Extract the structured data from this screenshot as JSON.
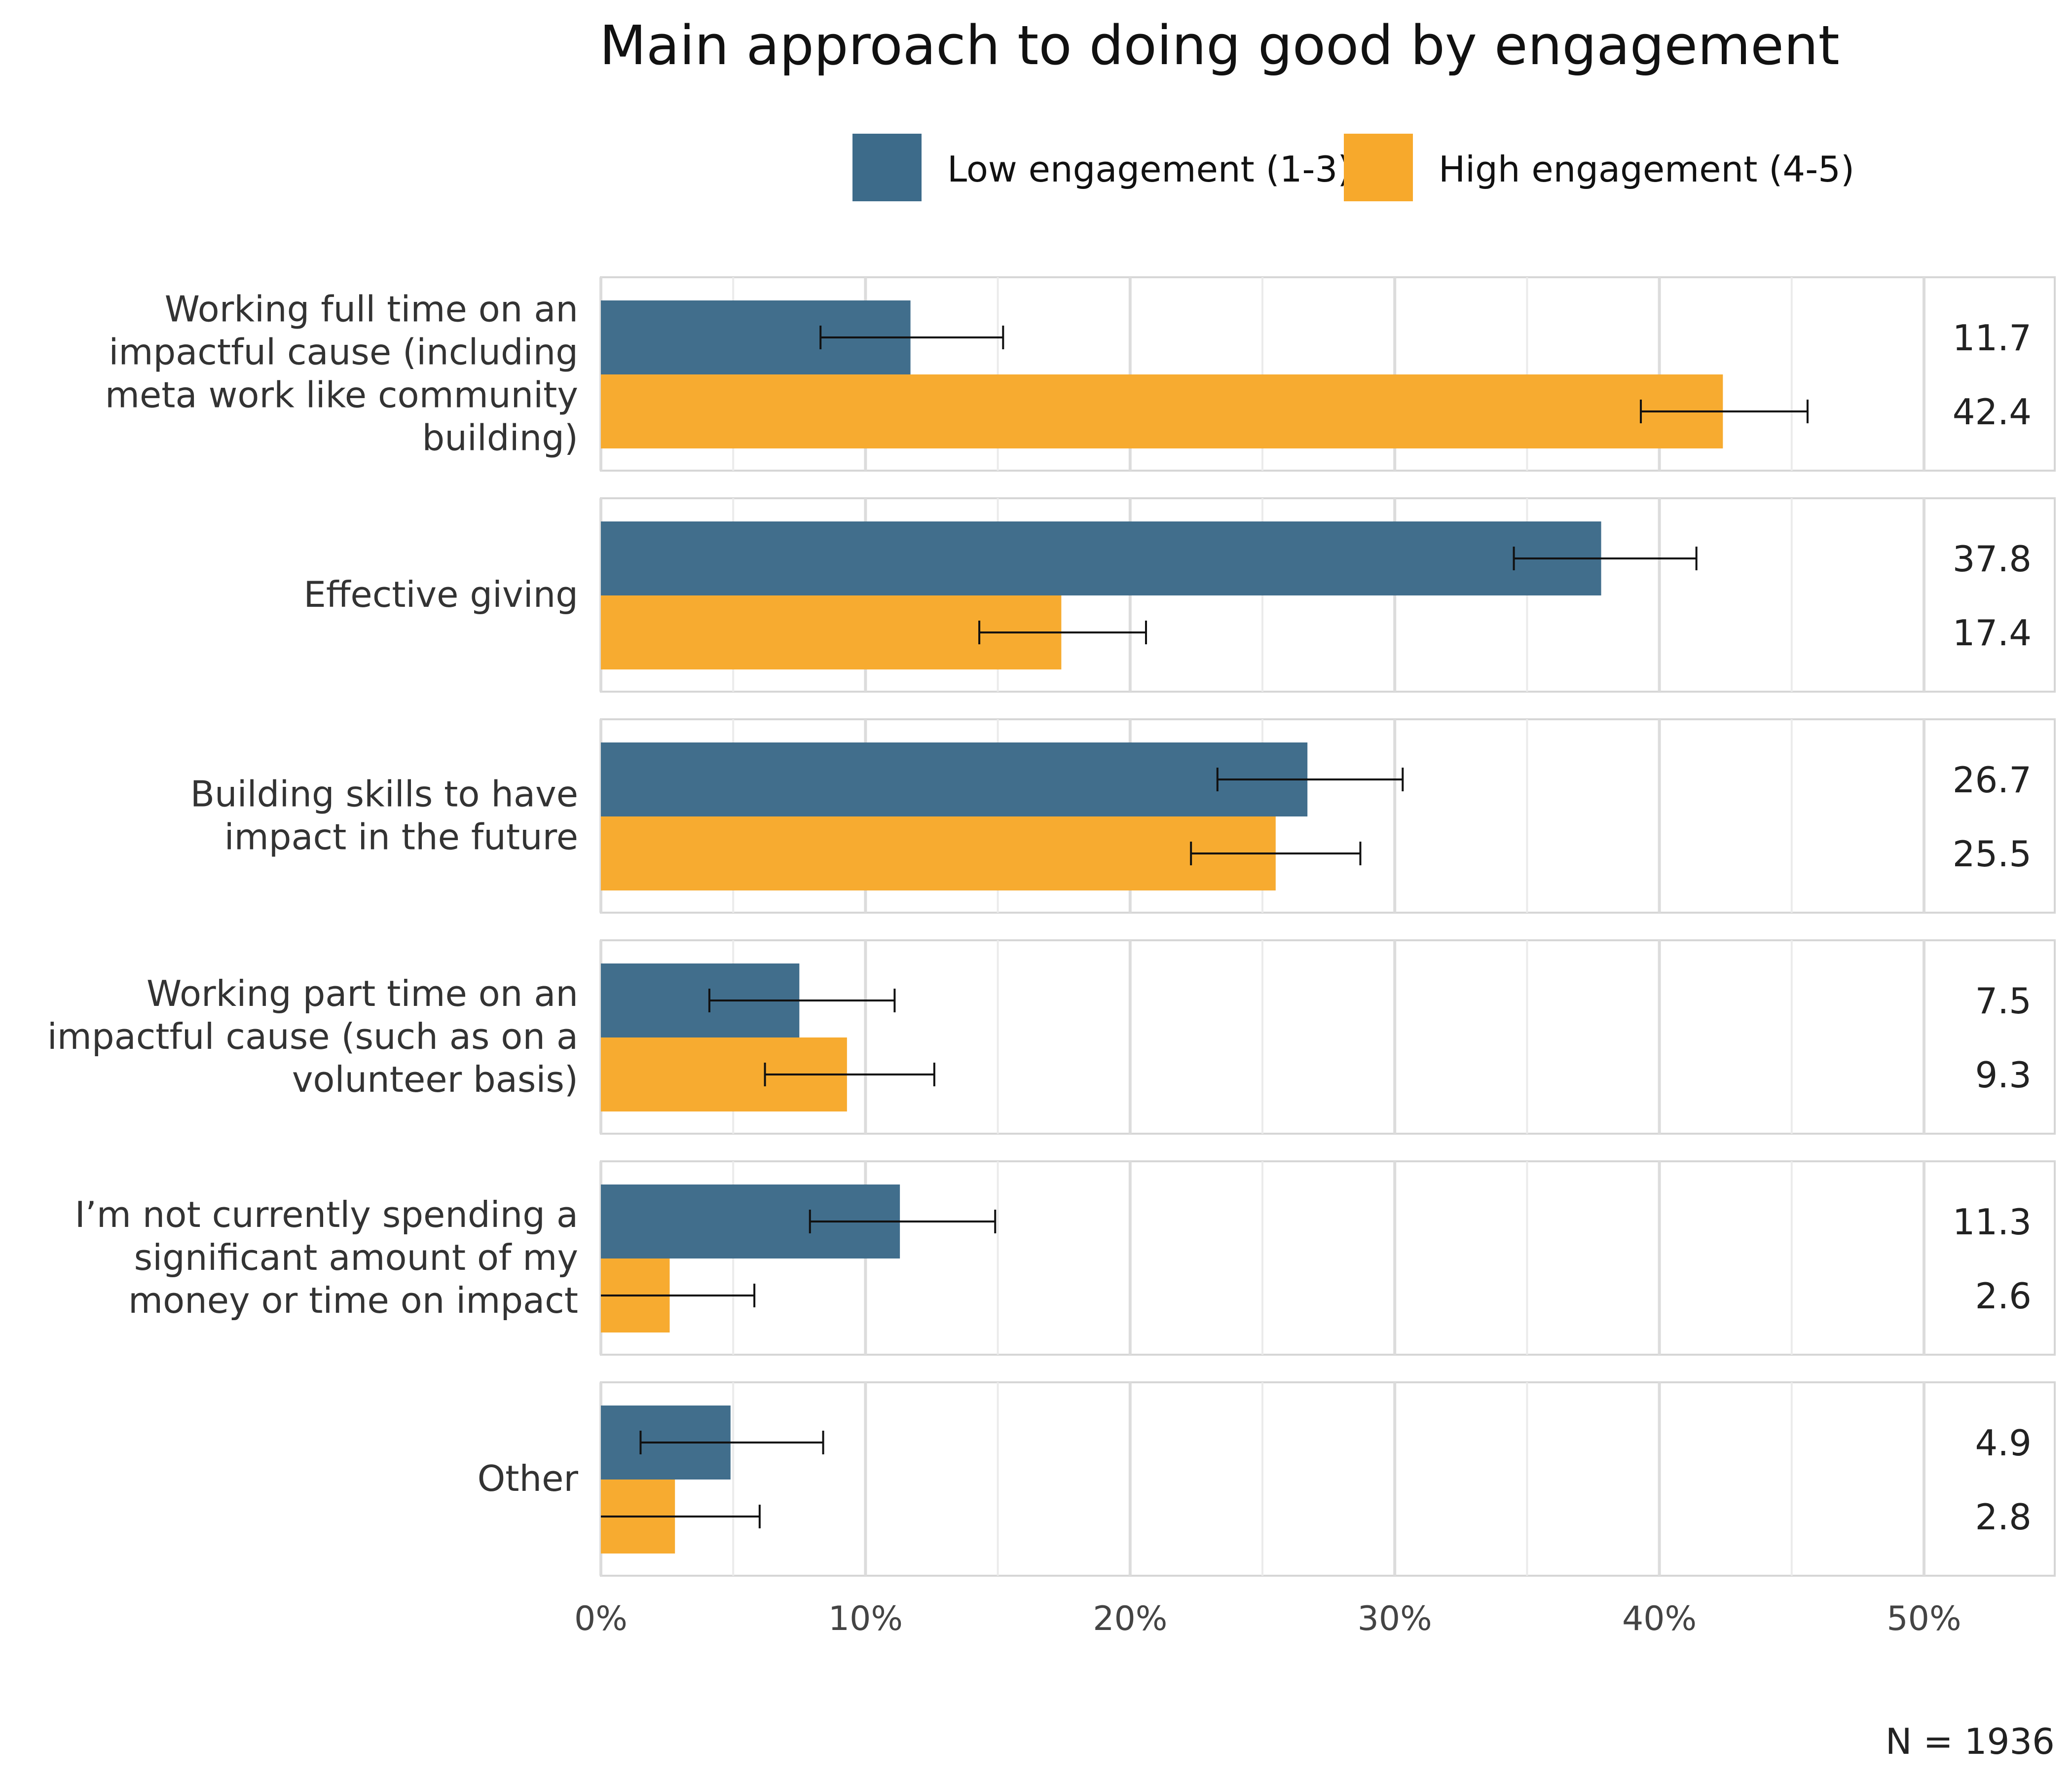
{
  "chart_data": {
    "type": "bar",
    "orientation": "horizontal",
    "title": "Main approach to doing good by engagement",
    "categories": [
      [
        "Working full time on an",
        "impactful cause (including",
        "meta work like community",
        "building)"
      ],
      [
        "Effective giving"
      ],
      [
        "Building skills to have",
        "impact in the future"
      ],
      [
        "Working part time on an",
        "impactful cause (such as on a",
        "volunteer basis)"
      ],
      [
        "I’m not currently spending a",
        "significant amount of my",
        "money or time on impact"
      ],
      [
        "Other"
      ]
    ],
    "series": [
      {
        "name": "Low engagement (1-3)",
        "color": "#3d6b8a",
        "values": [
          11.7,
          37.8,
          26.7,
          7.5,
          11.3,
          4.9
        ],
        "value_labels": [
          "11.7",
          "37.8",
          "26.7",
          "7.5",
          "11.3",
          "4.9"
        ],
        "ci_low": [
          8.3,
          34.5,
          23.3,
          4.1,
          7.9,
          1.5
        ],
        "ci_high": [
          15.2,
          41.4,
          30.3,
          11.1,
          14.9,
          8.4
        ]
      },
      {
        "name": "High engagement (4-5)",
        "color": "#f7a92c",
        "values": [
          42.4,
          17.4,
          25.5,
          9.3,
          2.6,
          2.8
        ],
        "value_labels": [
          "42.4",
          "17.4",
          "25.5",
          "9.3",
          "2.6",
          "2.8"
        ],
        "ci_low": [
          39.3,
          14.3,
          22.3,
          6.2,
          0.0,
          0.0
        ],
        "ci_high": [
          45.6,
          20.6,
          28.7,
          12.6,
          5.8,
          6.0
        ]
      }
    ],
    "x_ticks": [
      0,
      10,
      20,
      30,
      40,
      50
    ],
    "x_tick_labels": [
      "0%",
      "10%",
      "20%",
      "30%",
      "40%",
      "50%"
    ],
    "xlim": [
      0,
      50
    ],
    "xlabel": "",
    "ylabel": "",
    "grid": true,
    "legend_position": "top",
    "note": "N = 1936"
  }
}
